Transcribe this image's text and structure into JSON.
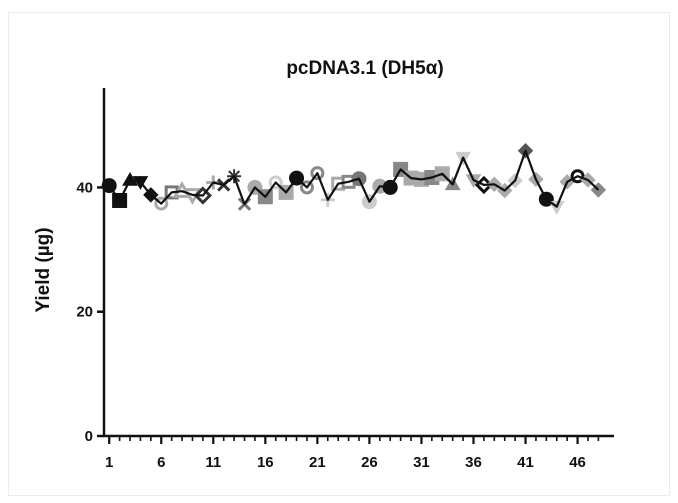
{
  "chart_data": {
    "type": "scatter",
    "title": "pcDNA3.1 (DH5α)",
    "xlabel": "",
    "ylabel": "Yield (µg)",
    "xlim": [
      0.5,
      49.5
    ],
    "ylim": [
      0,
      56
    ],
    "xticks": [
      1,
      6,
      11,
      16,
      21,
      26,
      31,
      36,
      41,
      46
    ],
    "yticks": [
      0,
      20,
      40
    ],
    "grid": false,
    "legend": "none",
    "line_color": "#111111",
    "x": [
      1,
      2,
      3,
      4,
      5,
      6,
      7,
      8,
      9,
      10,
      11,
      12,
      13,
      14,
      15,
      16,
      17,
      18,
      19,
      20,
      21,
      22,
      23,
      24,
      25,
      26,
      27,
      28,
      29,
      30,
      31,
      32,
      33,
      34,
      35,
      36,
      37,
      38,
      39,
      40,
      41,
      42,
      43,
      44,
      45,
      46,
      47,
      48
    ],
    "y": [
      40.3,
      37.9,
      41.2,
      40.9,
      38.8,
      37.4,
      39.2,
      39.4,
      38.8,
      38.7,
      40.8,
      40.4,
      41.8,
      37.3,
      40.0,
      38.5,
      40.8,
      39.2,
      41.5,
      40.0,
      42.3,
      38.0,
      40.6,
      40.9,
      41.4,
      37.7,
      40.2,
      40.0,
      42.9,
      41.5,
      41.3,
      41.6,
      42.2,
      40.5,
      44.8,
      41.2,
      40.4,
      40.5,
      39.5,
      41.1,
      45.9,
      41.3,
      38.1,
      36.9,
      40.9,
      41.8,
      41.2,
      39.6
    ],
    "markers": [
      {
        "shape": "circle",
        "fill": "#111111"
      },
      {
        "shape": "square",
        "fill": "#111111"
      },
      {
        "shape": "triangle-up",
        "fill": "#111111"
      },
      {
        "shape": "triangle-down",
        "fill": "#111111"
      },
      {
        "shape": "diamond",
        "fill": "#111111"
      },
      {
        "shape": "circle-open",
        "fill": "#aaaaaa"
      },
      {
        "shape": "square-open",
        "fill": "#777777"
      },
      {
        "shape": "triangle-up-open",
        "fill": "#aaaaaa"
      },
      {
        "shape": "triangle-down-open",
        "fill": "#aaaaaa"
      },
      {
        "shape": "diamond-open",
        "fill": "#333333"
      },
      {
        "shape": "plus",
        "fill": "#aaaaaa"
      },
      {
        "shape": "cross",
        "fill": "#333333"
      },
      {
        "shape": "star",
        "fill": "#333333"
      },
      {
        "shape": "cross",
        "fill": "#777777"
      },
      {
        "shape": "circle",
        "fill": "#aaaaaa"
      },
      {
        "shape": "square",
        "fill": "#888888"
      },
      {
        "shape": "circle-open",
        "fill": "#cccccc"
      },
      {
        "shape": "square",
        "fill": "#aaaaaa"
      },
      {
        "shape": "circle",
        "fill": "#111111"
      },
      {
        "shape": "circle-open",
        "fill": "#888888"
      },
      {
        "shape": "circle-open",
        "fill": "#888888"
      },
      {
        "shape": "plus",
        "fill": "#cccccc"
      },
      {
        "shape": "square-open",
        "fill": "#aaaaaa"
      },
      {
        "shape": "square-open",
        "fill": "#888888"
      },
      {
        "shape": "circle",
        "fill": "#777777"
      },
      {
        "shape": "circle",
        "fill": "#cccccc"
      },
      {
        "shape": "circle",
        "fill": "#aaaaaa"
      },
      {
        "shape": "circle",
        "fill": "#111111"
      },
      {
        "shape": "square",
        "fill": "#888888"
      },
      {
        "shape": "square",
        "fill": "#aaaaaa"
      },
      {
        "shape": "square",
        "fill": "#aaaaaa"
      },
      {
        "shape": "square",
        "fill": "#888888"
      },
      {
        "shape": "square",
        "fill": "#aaaaaa"
      },
      {
        "shape": "triangle-up",
        "fill": "#888888"
      },
      {
        "shape": "triangle-down",
        "fill": "#cccccc"
      },
      {
        "shape": "triangle-down",
        "fill": "#aaaaaa"
      },
      {
        "shape": "diamond-open",
        "fill": "#111111"
      },
      {
        "shape": "diamond",
        "fill": "#aaaaaa"
      },
      {
        "shape": "diamond",
        "fill": "#aaaaaa"
      },
      {
        "shape": "diamond",
        "fill": "#cccccc"
      },
      {
        "shape": "diamond",
        "fill": "#555555"
      },
      {
        "shape": "diamond",
        "fill": "#aaaaaa"
      },
      {
        "shape": "circle",
        "fill": "#111111"
      },
      {
        "shape": "triangle-down",
        "fill": "#cccccc"
      },
      {
        "shape": "diamond",
        "fill": "#aaaaaa"
      },
      {
        "shape": "circle-open",
        "fill": "#111111"
      },
      {
        "shape": "diamond",
        "fill": "#aaaaaa"
      },
      {
        "shape": "diamond",
        "fill": "#888888"
      }
    ]
  }
}
